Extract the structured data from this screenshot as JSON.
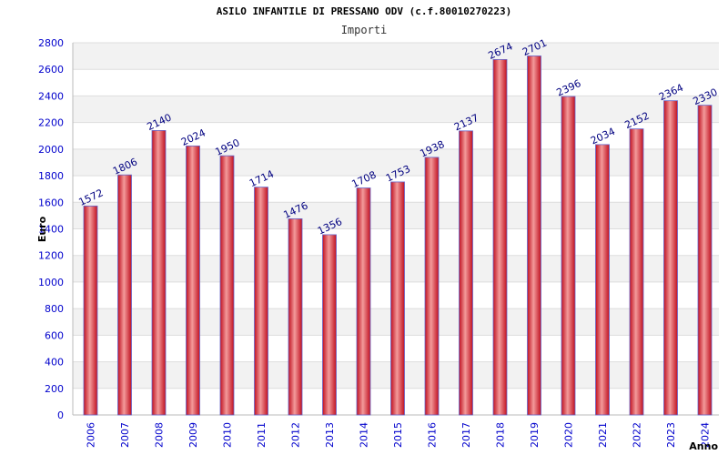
{
  "chart_data": {
    "type": "bar",
    "title": "ASILO INFANTILE DI PRESSANO ODV (c.f.80010270223)",
    "subtitle": "Importi",
    "xlabel": "Anno",
    "ylabel": "Euro",
    "ylim": [
      0,
      2800
    ],
    "ytick_step": 200,
    "grid": true,
    "categories": [
      "2006",
      "2007",
      "2008",
      "2009",
      "2010",
      "2011",
      "2012",
      "2013",
      "2014",
      "2015",
      "2016",
      "2017",
      "2018",
      "2019",
      "2020",
      "2021",
      "2022",
      "2023",
      "2024"
    ],
    "series": [
      {
        "values": [
          1572,
          1806,
          2140,
          2024,
          1950,
          1714,
          1476,
          1356,
          1708,
          1753,
          1938,
          2137,
          2674,
          2701,
          2396,
          2034,
          2152,
          2364,
          2330
        ]
      }
    ],
    "colors": {
      "bar_center": "#f08080",
      "bar_edge": "#c01020",
      "bar_outline": "#6666cc",
      "band": "#f2f2f2",
      "tick": "#0000cc",
      "label": "#000080"
    }
  }
}
